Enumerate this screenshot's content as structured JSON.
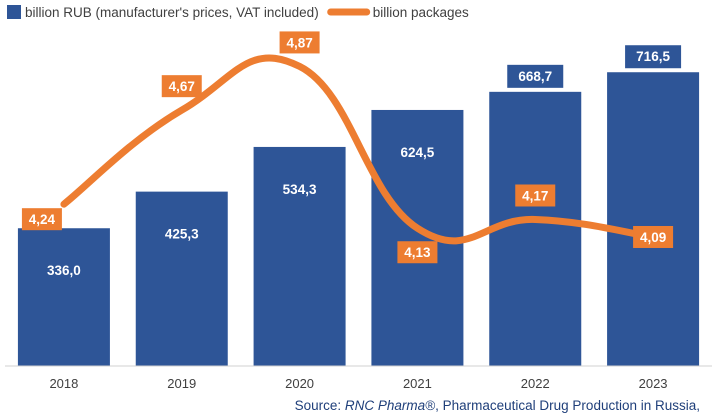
{
  "chart_data": {
    "type": "bar",
    "categories": [
      "2018",
      "2019",
      "2020",
      "2021",
      "2022",
      "2023"
    ],
    "series": [
      {
        "name": "billion RUB (manufacturer's prices, VAT included)",
        "type": "bar",
        "axis": "left",
        "values": [
          336.0,
          425.3,
          534.3,
          624.5,
          668.7,
          716.5
        ],
        "labels": [
          "336,0",
          "425,3",
          "534,3",
          "624,5",
          "668,7",
          "716,5"
        ]
      },
      {
        "name": "billion packages",
        "type": "line",
        "axis": "right",
        "values": [
          4.24,
          4.67,
          4.87,
          4.13,
          4.17,
          4.09
        ],
        "labels": [
          "4,24",
          "4,67",
          "4,87",
          "4,13",
          "4,17",
          "4,09"
        ]
      }
    ],
    "ylim_left": [
      0,
      800
    ],
    "ylim_right": [
      3.5,
      5.0
    ],
    "grid": false,
    "legend_position": "top-left"
  },
  "colors": {
    "bar": "#2e5597",
    "line": "#ed7d31",
    "axis": "#d0d0d0",
    "source_text": "#1f3f7a"
  },
  "source": {
    "prefix": "Source: ",
    "brand": "RNC Pharma®",
    "rest": ", Pharmaceutical Drug Production in Russia,"
  }
}
